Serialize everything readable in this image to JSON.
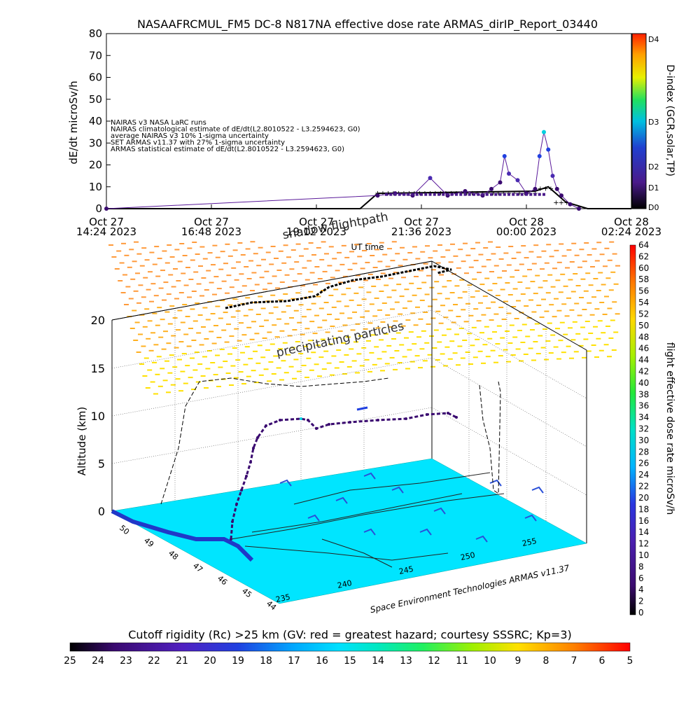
{
  "chart_data": [
    {
      "type": "line",
      "title": "NASAAFRCMUL_FM5 DC-8    N817NA effective dose rate ARMAS_dirIP_Report_03440",
      "ylabel": "dE/dt microSv/h",
      "xlabel": "UT time",
      "ylim": [
        0,
        80
      ],
      "yticks": [
        "0",
        "10",
        "20",
        "30",
        "40",
        "50",
        "60",
        "70",
        "80"
      ],
      "xtick_labels": [
        {
          "day": "Oct 27",
          "time": "14:24  2023"
        },
        {
          "day": "Oct 27",
          "time": "16:48  2023"
        },
        {
          "day": "Oct 27",
          "time": "19:12  2023"
        },
        {
          "day": "Oct 27",
          "time": "21:36  2023"
        },
        {
          "day": "Oct 28",
          "time": "00:00  2023"
        },
        {
          "day": "Oct 28",
          "time": "02:24  2023"
        }
      ],
      "x_units": "hours since Oct 27 14:24 2023",
      "xlim": [
        0,
        12
      ],
      "legend": [
        "NAIRAS v3 NASA LaRC runs",
        "NAIRAS climatological estimate of dE/dt(L2.8010522 - L3.2594623, G0)",
        "average NAIRAS v3 10% 1-sigma uncertainty",
        "SET ARMAS v11.37 with 27% 1-sigma uncertainty",
        "ARMAS statistical estimate of dE/dt(L2.8010522 - L3.2594623, G0)"
      ],
      "colorbar_label": "D-index (GCR,solar,TP)",
      "colorbar_ticks": [
        "D0",
        "D1",
        "D2",
        "D3",
        "D4"
      ],
      "series": [
        {
          "name": "NAIRAS climatological estimate of dE/dt(L2.8010522 - L3.2594623, G0)",
          "x": [
            0,
            5.8,
            6.2,
            9.8,
            10.1,
            10.5,
            11.0,
            12
          ],
          "y": [
            0,
            0,
            7,
            8,
            10,
            3,
            0,
            0
          ]
        },
        {
          "name": "SET ARMAS v11.37 with 27% 1-sigma uncertainty",
          "x": [
            0,
            6.2,
            6.6,
            7.0,
            7.4,
            7.8,
            8.2,
            8.6,
            8.8,
            9.0,
            9.1,
            9.2,
            9.4,
            9.6,
            9.8,
            9.9,
            10.0,
            10.1,
            10.2,
            10.3,
            10.4,
            10.6,
            10.8
          ],
          "y": [
            0,
            6,
            7,
            6,
            14,
            6,
            8,
            6,
            9,
            12,
            24,
            16,
            13,
            7,
            9,
            24,
            35,
            27,
            15,
            9,
            6,
            2,
            0
          ]
        }
      ]
    },
    {
      "type": "scatter",
      "title": "shadow flightpath",
      "zlabel": "Altitude (km)",
      "z_ticks": [
        "0",
        "5",
        "10",
        "15",
        "20"
      ],
      "lat_ticks": [
        "50",
        "49",
        "48",
        "47",
        "46",
        "45",
        "44"
      ],
      "lon_ticks": [
        "235",
        "240",
        "245",
        "250",
        "255"
      ],
      "annotation": "precipitating particles",
      "credit": "Space Environment Technologies ARMAS v11.37",
      "colorbar_label": "flight effective dose rate microSv/h",
      "colorbar_ticks": [
        "0",
        "2",
        "4",
        "6",
        "8",
        "10",
        "12",
        "14",
        "16",
        "18",
        "20",
        "22",
        "24",
        "26",
        "28",
        "30",
        "32",
        "34",
        "36",
        "38",
        "40",
        "42",
        "44",
        "46",
        "48",
        "50",
        "52",
        "54",
        "56",
        "58",
        "60",
        "62",
        "64"
      ],
      "flight_altitude_km": [
        0,
        2,
        4,
        6,
        8,
        9,
        10,
        10,
        11,
        11,
        11.5,
        12,
        12,
        12,
        12
      ]
    }
  ],
  "bottom_colorbar": {
    "label": "Cutoff rigidity (Rc) >25 km (GV: red = greatest hazard; courtesy SSSRC; Kp=3)",
    "ticks": [
      "25",
      "24",
      "23",
      "22",
      "21",
      "20",
      "19",
      "18",
      "17",
      "16",
      "15",
      "14",
      "13",
      "12",
      "11",
      "10",
      "9",
      "8",
      "7",
      "6",
      "5"
    ]
  },
  "colors": {
    "map_surface": "#00e5ff",
    "rigidity_scale": [
      "#000000",
      "#3b0c6e",
      "#5a22b5",
      "#2a33d6",
      "#1a6ef0",
      "#00c8ff",
      "#00e5d0",
      "#20ff80",
      "#7dff20",
      "#d8ff00",
      "#ffe000",
      "#ffa000",
      "#ff5a00",
      "#ff0000"
    ]
  }
}
